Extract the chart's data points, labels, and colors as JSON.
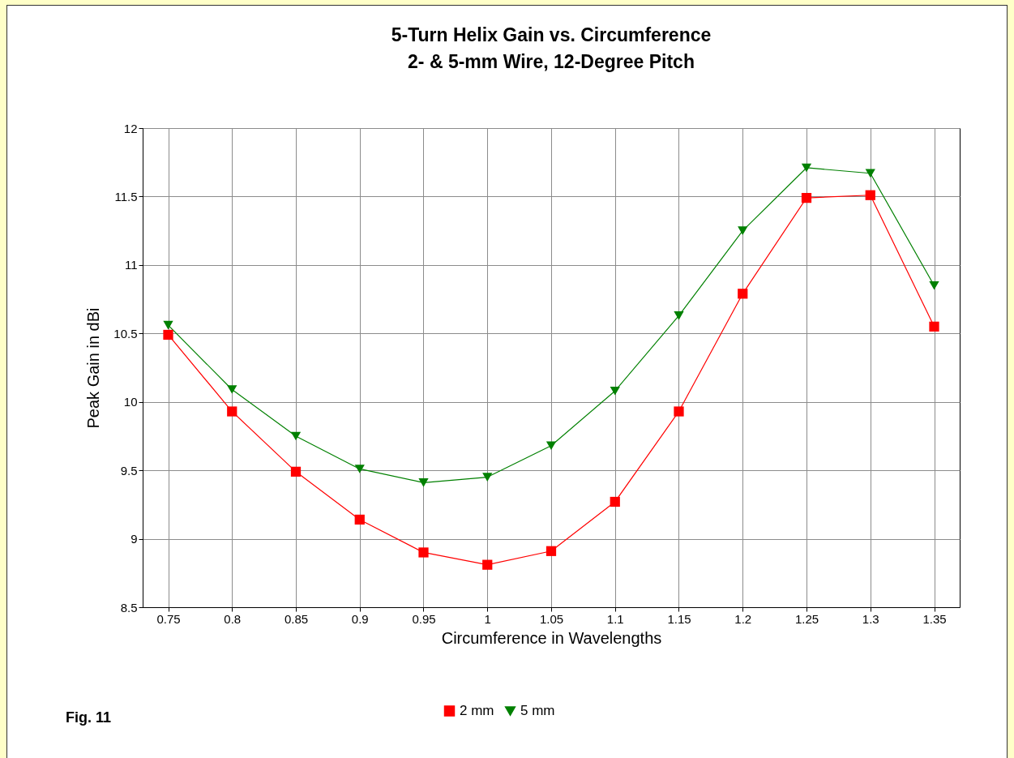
{
  "chart_data": {
    "type": "line",
    "title": "5-Turn Helix Gain vs. Circumference",
    "subtitle": "2- & 5-mm Wire, 12-Degree Pitch",
    "xlabel": "Circumference in Wavelengths",
    "ylabel": "Peak Gain in dBi",
    "x": [
      0.75,
      0.8,
      0.85,
      0.9,
      0.95,
      1,
      1.05,
      1.1,
      1.15,
      1.2,
      1.25,
      1.3,
      1.35
    ],
    "series": [
      {
        "name": "2 mm",
        "color": "#ff0000",
        "marker": "square",
        "values": [
          10.49,
          9.93,
          9.49,
          9.14,
          8.9,
          8.81,
          8.91,
          9.27,
          9.93,
          10.79,
          11.49,
          11.51,
          10.55
        ]
      },
      {
        "name": "5 mm",
        "color": "#008000",
        "marker": "triangle",
        "values": [
          10.56,
          10.09,
          9.75,
          9.51,
          9.41,
          9.45,
          9.68,
          10.08,
          10.63,
          11.25,
          11.71,
          11.67,
          10.85
        ]
      }
    ],
    "xlim": [
      0.73,
      1.37
    ],
    "xticks": [
      0.75,
      0.8,
      0.85,
      0.9,
      0.95,
      1,
      1.05,
      1.1,
      1.15,
      1.2,
      1.25,
      1.3,
      1.35
    ],
    "ylim": [
      8.5,
      12
    ],
    "yticks": [
      8.5,
      9,
      9.5,
      10,
      10.5,
      11,
      11.5,
      12
    ],
    "grid": true,
    "legend": "bottom",
    "annotations": [
      "Fig. 11"
    ]
  }
}
